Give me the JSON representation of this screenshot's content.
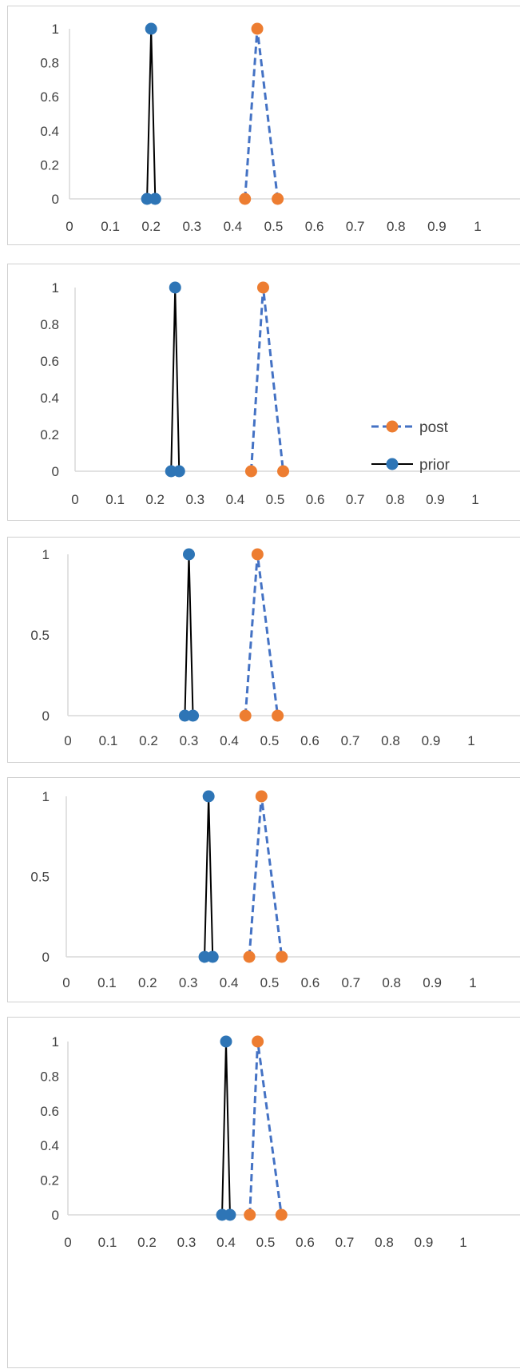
{
  "colors": {
    "post": "#ED7D31",
    "post_line": "#4472C4",
    "prior": "#2E75B6",
    "prior_line": "#000000",
    "axis": "#d9d9d9",
    "text": "#404040"
  },
  "chart_data": [
    {
      "type": "line",
      "xlim": [
        0,
        1
      ],
      "ylim": [
        0,
        1
      ],
      "x_ticks": [
        0,
        0.1,
        0.2,
        0.3,
        0.4,
        0.5,
        0.6,
        0.7,
        0.8,
        0.9,
        1
      ],
      "x_tick_labels": [
        "0",
        "0.1",
        "0.2",
        "0.3",
        "0.4",
        "0.5",
        "0.6",
        "0.7",
        "0.8",
        "0.9",
        "1"
      ],
      "y_ticks": [
        0,
        0.2,
        0.4,
        0.6,
        0.8,
        1
      ],
      "y_tick_labels": [
        "0",
        "0.2",
        "0.4",
        "0.6",
        "0.8",
        "1"
      ],
      "grid": false,
      "legend": null,
      "series": [
        {
          "key": "prior",
          "x": [
            0.19,
            0.2,
            0.21
          ],
          "y": [
            0,
            1,
            0
          ]
        },
        {
          "key": "post",
          "x": [
            0.43,
            0.46,
            0.51
          ],
          "y": [
            0,
            1,
            0
          ]
        }
      ]
    },
    {
      "type": "line",
      "xlim": [
        0,
        1
      ],
      "ylim": [
        0,
        1
      ],
      "x_ticks": [
        0,
        0.1,
        0.2,
        0.3,
        0.4,
        0.5,
        0.6,
        0.7,
        0.8,
        0.9,
        1
      ],
      "x_tick_labels": [
        "0",
        "0.1",
        "0.2",
        "0.3",
        "0.4",
        "0.5",
        "0.6",
        "0.7",
        "0.8",
        "0.9",
        "1"
      ],
      "y_ticks": [
        0,
        0.2,
        0.4,
        0.6,
        0.8,
        1
      ],
      "y_tick_labels": [
        "0",
        "0.2",
        "0.4",
        "0.6",
        "0.8",
        "1"
      ],
      "grid": false,
      "legend": "right",
      "series": [
        {
          "key": "post",
          "name": "post",
          "x": [
            0.44,
            0.47,
            0.52
          ],
          "y": [
            0,
            1,
            0
          ]
        },
        {
          "key": "prior",
          "name": "prior",
          "x": [
            0.24,
            0.25,
            0.26
          ],
          "y": [
            0,
            1,
            0
          ]
        }
      ]
    },
    {
      "type": "line",
      "xlim": [
        0,
        1
      ],
      "ylim": [
        0,
        1
      ],
      "x_ticks": [
        0,
        0.1,
        0.2,
        0.3,
        0.4,
        0.5,
        0.6,
        0.7,
        0.8,
        0.9,
        1
      ],
      "x_tick_labels": [
        "0",
        "0.1",
        "0.2",
        "0.3",
        "0.4",
        "0.5",
        "0.6",
        "0.7",
        "0.8",
        "0.9",
        "1"
      ],
      "y_ticks": [
        0,
        0.5,
        1
      ],
      "y_tick_labels": [
        "0",
        "0.5",
        "1"
      ],
      "grid": false,
      "legend": null,
      "series": [
        {
          "key": "prior",
          "x": [
            0.29,
            0.3,
            0.31
          ],
          "y": [
            0,
            1,
            0
          ]
        },
        {
          "key": "post",
          "x": [
            0.44,
            0.47,
            0.52
          ],
          "y": [
            0,
            1,
            0
          ]
        }
      ]
    },
    {
      "type": "line",
      "xlim": [
        0,
        1
      ],
      "ylim": [
        0,
        1
      ],
      "x_ticks": [
        0,
        0.1,
        0.2,
        0.3,
        0.4,
        0.5,
        0.6,
        0.7,
        0.8,
        0.9,
        1
      ],
      "x_tick_labels": [
        "0",
        "0.1",
        "0.2",
        "0.3",
        "0.4",
        "0.5",
        "0.6",
        "0.7",
        "0.8",
        "0.9",
        "1"
      ],
      "y_ticks": [
        0,
        0.5,
        1
      ],
      "y_tick_labels": [
        "0",
        "0.5",
        "1"
      ],
      "grid": false,
      "legend": null,
      "series": [
        {
          "key": "prior",
          "x": [
            0.34,
            0.35,
            0.36
          ],
          "y": [
            0,
            1,
            0
          ]
        },
        {
          "key": "post",
          "x": [
            0.45,
            0.48,
            0.53
          ],
          "y": [
            0,
            1,
            0
          ]
        }
      ]
    },
    {
      "type": "line",
      "xlim": [
        0,
        1
      ],
      "ylim": [
        0,
        1
      ],
      "x_ticks": [
        0,
        0.1,
        0.2,
        0.3,
        0.4,
        0.5,
        0.6,
        0.7,
        0.8,
        0.9,
        1
      ],
      "x_tick_labels": [
        "0",
        "0.1",
        "0.2",
        "0.3",
        "0.4",
        "0.5",
        "0.6",
        "0.7",
        "0.8",
        "0.9",
        "1"
      ],
      "y_ticks": [
        0,
        0.2,
        0.4,
        0.6,
        0.8,
        1
      ],
      "y_tick_labels": [
        "0",
        "0.2",
        "0.4",
        "0.6",
        "0.8",
        "1"
      ],
      "grid": false,
      "legend": null,
      "series": [
        {
          "key": "prior",
          "x": [
            0.39,
            0.4,
            0.41
          ],
          "y": [
            0,
            1,
            0
          ]
        },
        {
          "key": "post",
          "x": [
            0.46,
            0.48,
            0.54
          ],
          "y": [
            0,
            1,
            0
          ]
        }
      ]
    }
  ]
}
